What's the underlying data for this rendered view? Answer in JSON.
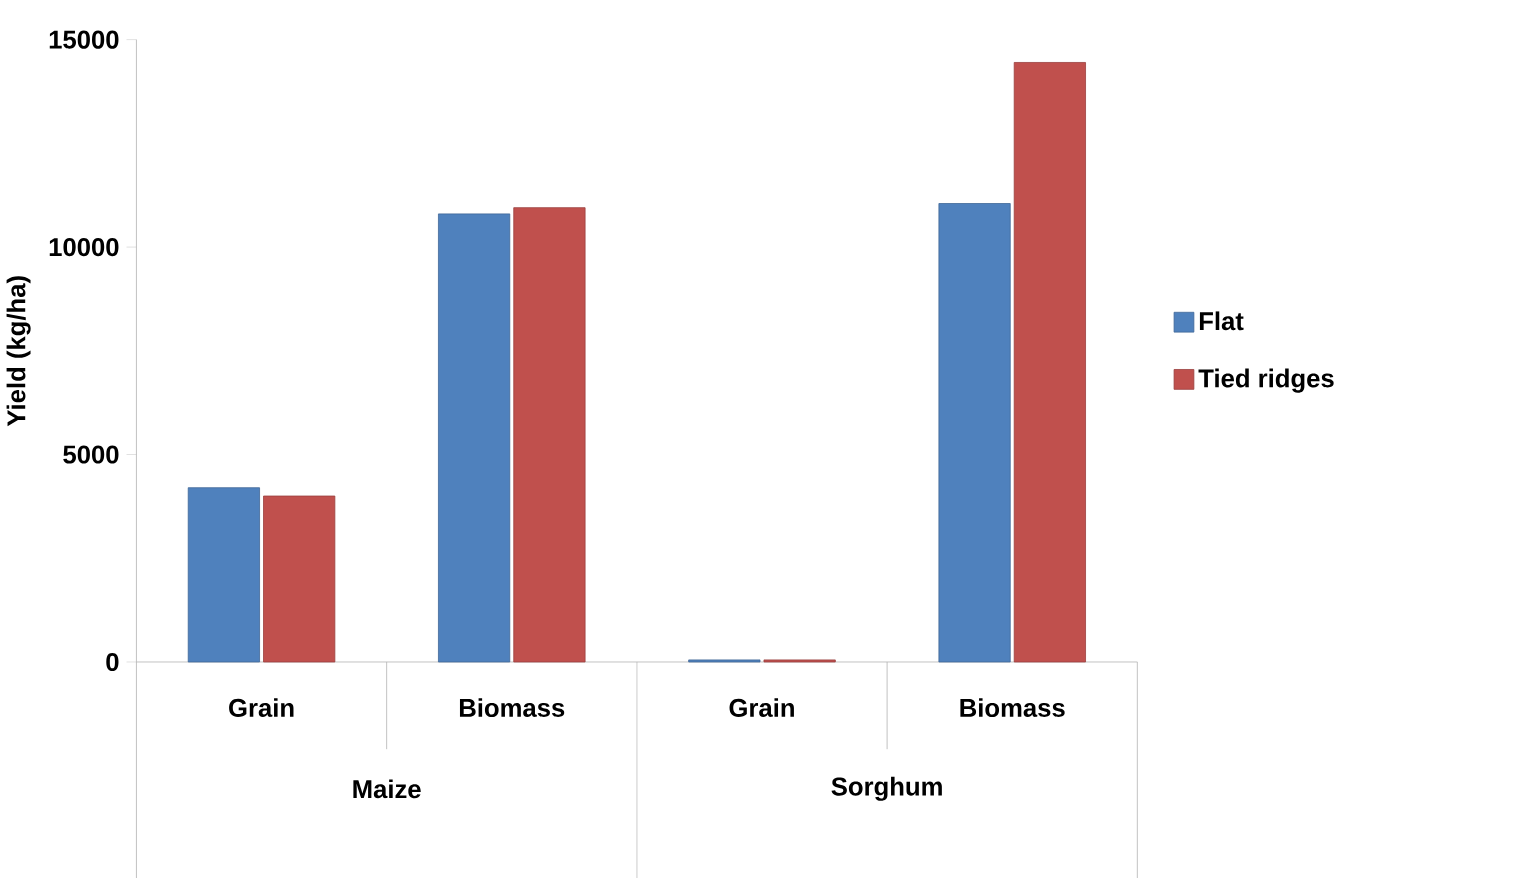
{
  "chart_data": {
    "type": "bar",
    "ylabel": "Yield (kg/ha)",
    "categories": [
      "Grain",
      "Biomass",
      "Grain",
      "Biomass"
    ],
    "annotations": [
      "Maize",
      "Sorghum"
    ],
    "series": [
      {
        "name": "Flat",
        "color": "#4f81bd",
        "values": [
          4200,
          10800,
          50,
          11050
        ]
      },
      {
        "name": "Tied ridges",
        "color": "#c0504d",
        "values": [
          4000,
          10950,
          50,
          14450
        ]
      }
    ],
    "ylim": [
      0,
      15000
    ],
    "yticks": [
      0,
      5000,
      10000,
      15000
    ],
    "grid": false,
    "legend": "right"
  }
}
